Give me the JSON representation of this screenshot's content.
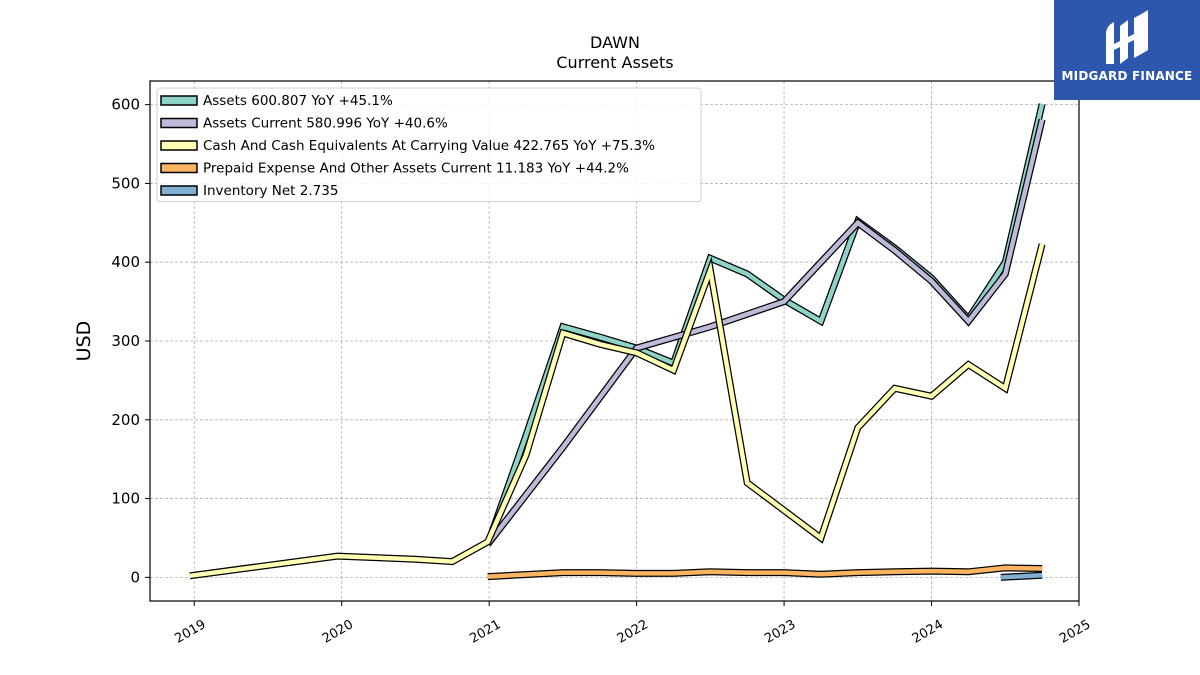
{
  "chart_data": {
    "type": "line",
    "title": "DAWN",
    "subtitle": "Current  Assets",
    "ylabel": "USD",
    "xlabel": "",
    "xlim": [
      2018.7,
      2025.0
    ],
    "ylim": [
      -30,
      630
    ],
    "yticks": [
      0,
      100,
      200,
      300,
      400,
      500,
      600
    ],
    "xticks": [
      "2019",
      "2020",
      "2021",
      "2022",
      "2023",
      "2024",
      "2025"
    ],
    "grid": true,
    "legend_position": "top-left",
    "series": [
      {
        "name": "Assets  600.807 YoY +45.1%",
        "color": "#8dd3c7",
        "points": [
          [
            2020.99,
            42
          ],
          [
            2021.25,
            180
          ],
          [
            2021.5,
            318
          ],
          [
            2021.75,
            305
          ],
          [
            2022.0,
            291
          ],
          [
            2022.25,
            272
          ],
          [
            2022.5,
            405
          ],
          [
            2022.75,
            385
          ],
          [
            2023.0,
            352
          ],
          [
            2023.25,
            325
          ],
          [
            2023.5,
            452
          ],
          [
            2023.75,
            418
          ],
          [
            2024.0,
            380
          ],
          [
            2024.25,
            328
          ],
          [
            2024.5,
            400
          ],
          [
            2024.75,
            600.8
          ]
        ]
      },
      {
        "name": "Assets Current  580.996 YoY +40.6%",
        "color": "#bebada",
        "points": [
          [
            2020.99,
            42
          ],
          [
            2021.5,
            165
          ],
          [
            2022.0,
            291
          ],
          [
            2022.5,
            318
          ],
          [
            2023.0,
            350
          ],
          [
            2023.25,
            400
          ],
          [
            2023.5,
            450
          ],
          [
            2023.75,
            415
          ],
          [
            2024.0,
            376
          ],
          [
            2024.25,
            325
          ],
          [
            2024.5,
            385
          ],
          [
            2024.75,
            581.0
          ]
        ]
      },
      {
        "name": "Cash And Cash Equivalents At Carrying Value  422.765 YoY +75.3%",
        "color": "#ffffb3",
        "points": [
          [
            2018.97,
            2
          ],
          [
            2019.97,
            27
          ],
          [
            2020.5,
            23
          ],
          [
            2020.75,
            20
          ],
          [
            2020.99,
            45
          ],
          [
            2021.25,
            155
          ],
          [
            2021.5,
            310
          ],
          [
            2021.75,
            296
          ],
          [
            2022.0,
            285
          ],
          [
            2022.25,
            263
          ],
          [
            2022.5,
            390
          ],
          [
            2022.75,
            120
          ],
          [
            2023.0,
            85
          ],
          [
            2023.25,
            50
          ],
          [
            2023.5,
            190
          ],
          [
            2023.75,
            240
          ],
          [
            2024.0,
            230
          ],
          [
            2024.25,
            270
          ],
          [
            2024.5,
            240
          ],
          [
            2024.75,
            422.8
          ]
        ]
      },
      {
        "name": "Prepaid Expense And Other Assets Current  11.183 YoY +44.2%",
        "color": "#fdb462",
        "points": [
          [
            2020.99,
            1
          ],
          [
            2021.5,
            6
          ],
          [
            2021.75,
            6
          ],
          [
            2022.0,
            5
          ],
          [
            2022.25,
            5
          ],
          [
            2022.5,
            7
          ],
          [
            2022.75,
            6
          ],
          [
            2023.0,
            6
          ],
          [
            2023.25,
            4
          ],
          [
            2023.5,
            6
          ],
          [
            2023.75,
            7
          ],
          [
            2024.0,
            8
          ],
          [
            2024.25,
            7
          ],
          [
            2024.5,
            12
          ],
          [
            2024.75,
            11.2
          ]
        ]
      },
      {
        "name": "Inventory Net  2.735",
        "color": "#80b1d3",
        "points": [
          [
            2024.47,
            0
          ],
          [
            2024.75,
            2.7
          ]
        ]
      }
    ]
  },
  "branding": {
    "logo_text": "MIDGARD FINANCE"
  }
}
